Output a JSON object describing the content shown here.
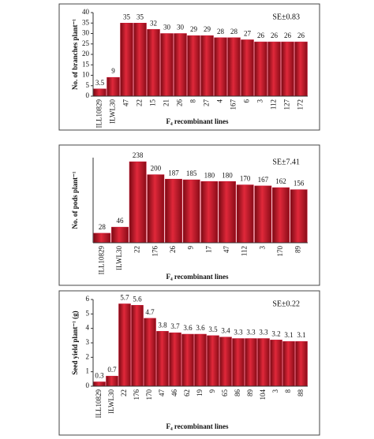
{
  "chart_data": [
    {
      "type": "bar",
      "ylabel": "No. of branches plant⁻¹",
      "xlabel": "F₄ recombinant lines",
      "annotation": "SE±0.83",
      "categories": [
        "ILL10829",
        "ILWL30",
        "47",
        "22",
        "15",
        "21",
        "26",
        "8",
        "27",
        "4",
        "167",
        "6",
        "3",
        "112",
        "127",
        "172"
      ],
      "values": [
        3.5,
        9,
        35,
        35,
        32,
        30,
        30,
        29,
        29,
        28,
        28,
        27,
        26,
        26,
        26,
        26
      ],
      "color": "#c8102e",
      "ylim": [
        0,
        40
      ],
      "yticks": [
        0,
        5,
        10,
        15,
        20,
        25,
        30,
        35,
        40
      ]
    },
    {
      "type": "bar",
      "ylabel": "No. of pods plant⁻¹",
      "xlabel": "F₄ recombinant lines",
      "annotation": "SE±7.41",
      "categories": [
        "ILL10829",
        "ILWL30",
        "22",
        "176",
        "26",
        "9",
        "17",
        "47",
        "112",
        "3",
        "170",
        "89"
      ],
      "values": [
        28,
        46,
        238,
        200,
        187,
        185,
        180,
        180,
        170,
        167,
        162,
        156
      ],
      "color": "#c8102e",
      "ylim": [
        0,
        250
      ]
    },
    {
      "type": "bar",
      "ylabel": "Seed yield plant⁻¹ (g)",
      "xlabel": "F₄ recombinant lines",
      "annotation": "SE±0.22",
      "categories": [
        "ILL10829",
        "ILWL30",
        "22",
        "176",
        "170",
        "47",
        "46",
        "62",
        "19",
        "9",
        "65",
        "86",
        "89",
        "104",
        "3",
        "8",
        "88"
      ],
      "values": [
        0.3,
        0.7,
        5.7,
        5.6,
        4.7,
        3.8,
        3.7,
        3.6,
        3.6,
        3.5,
        3.4,
        3.3,
        3.3,
        3.3,
        3.2,
        3.1,
        3.1
      ],
      "color": "#c8102e",
      "ylim": [
        0,
        6
      ],
      "yticks": [
        0,
        1,
        2,
        3,
        4,
        5,
        6
      ]
    }
  ]
}
